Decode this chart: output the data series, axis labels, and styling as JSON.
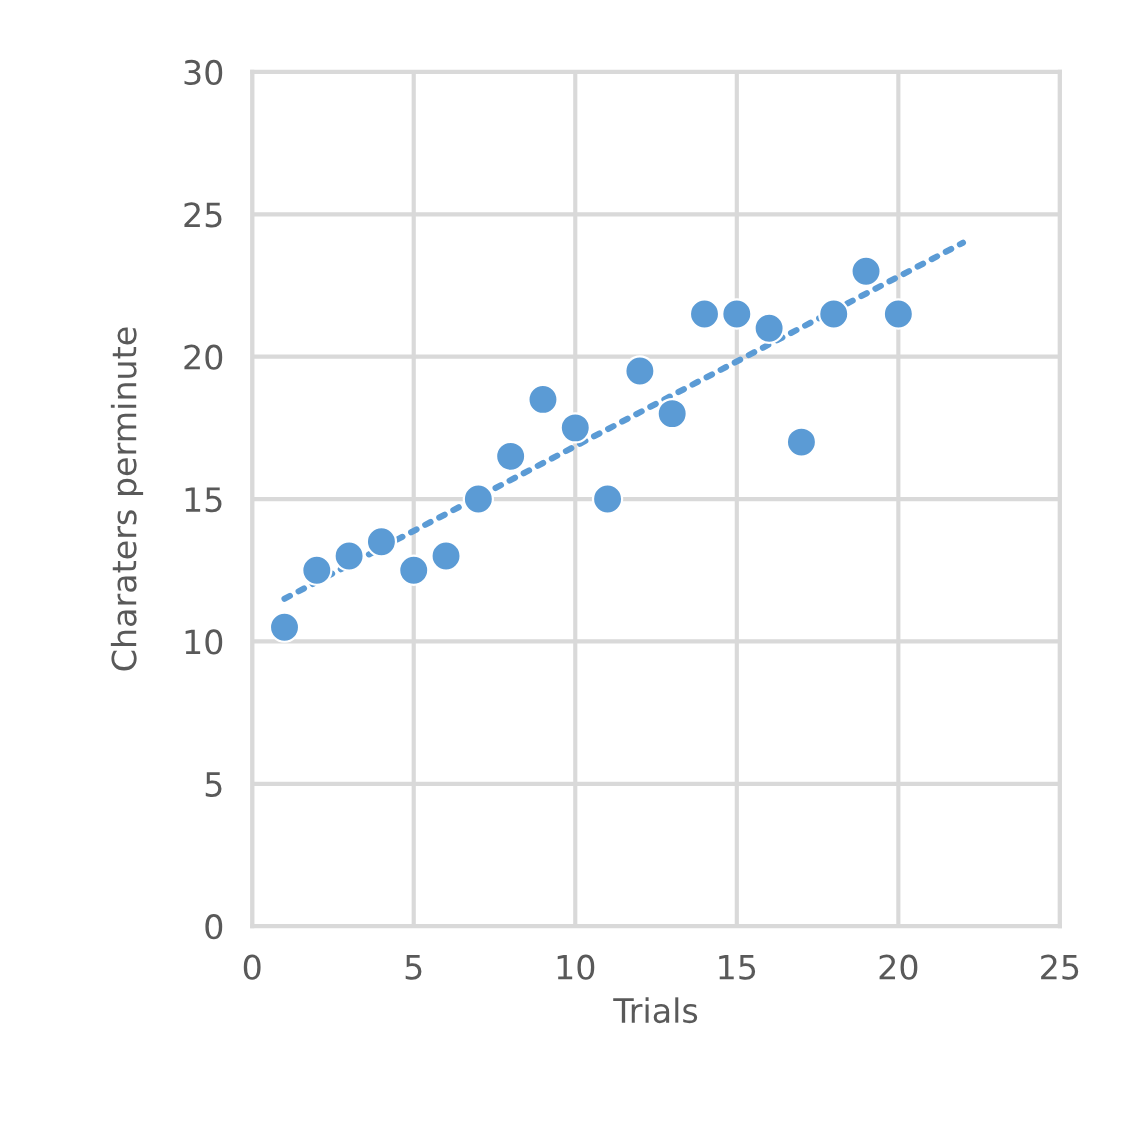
{
  "chart_data": {
    "type": "scatter",
    "xlabel": "Trials",
    "ylabel": "Charaters perminute",
    "xlim": [
      0,
      25
    ],
    "xticks": [
      0,
      5,
      10,
      15,
      20,
      25
    ],
    "ylim": [
      0,
      30
    ],
    "yticks": [
      0,
      5,
      10,
      15,
      20,
      25,
      30
    ],
    "grid": true,
    "series": [
      {
        "color": "#5b9bd5",
        "marker": "circle",
        "x": [
          1,
          2,
          3,
          4,
          5,
          6,
          7,
          8,
          9,
          10,
          11,
          12,
          13,
          14,
          15,
          16,
          17,
          18,
          19,
          20
        ],
        "values": [
          10.5,
          12.5,
          13,
          13.5,
          12.5,
          13,
          15,
          16.5,
          18.5,
          17.5,
          15,
          19.5,
          18,
          21.5,
          21.5,
          21,
          17,
          21.5,
          23,
          21.5
        ]
      },
      {
        "type": "line",
        "color": "#5b9bd5",
        "line_style": "dotted",
        "x": [
          1,
          22
        ],
        "values": [
          11.5,
          24
        ]
      }
    ]
  }
}
